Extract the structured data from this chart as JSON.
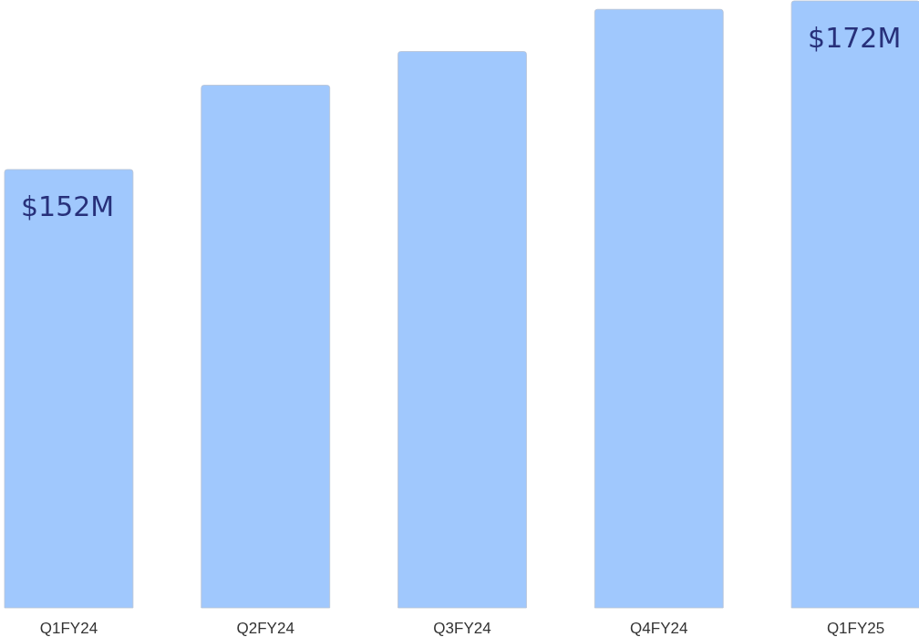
{
  "chart_data": {
    "type": "bar",
    "categories": [
      "Q1FY24",
      "Q2FY24",
      "Q3FY24",
      "Q4FY24",
      "Q1FY25"
    ],
    "values": [
      152,
      162,
      166,
      171,
      172
    ],
    "value_labels": [
      "$152M",
      null,
      null,
      null,
      "$172M"
    ],
    "color": "#a0c8fd",
    "ylim": [
      100,
      172
    ]
  }
}
